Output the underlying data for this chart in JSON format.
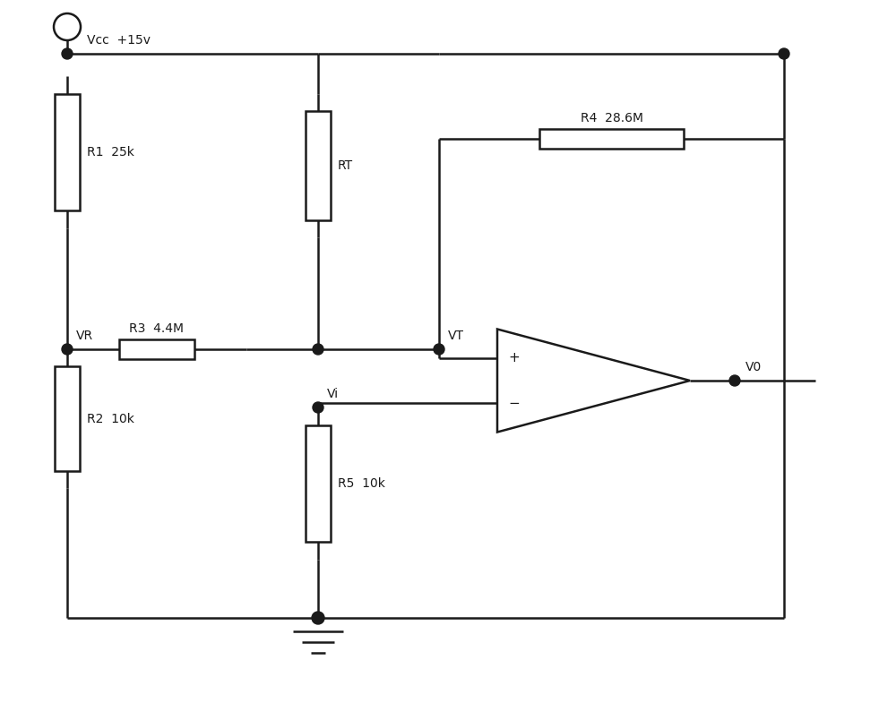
{
  "bg_color": "#ffffff",
  "line_color": "#1a1a1a",
  "line_width": 1.8,
  "figsize": [
    10.0,
    7.85
  ],
  "dpi": 100,
  "labels": {
    "vcc": "Vcc  +15v",
    "r1": "R1  25k",
    "r2": "R2  10k",
    "r3": "R3  4.4M",
    "r4": "R4  28.6M",
    "rt": "RT",
    "r5": "R5  10k",
    "vr": "VR",
    "vt": "VT",
    "vi": "Vi",
    "v0": "V0"
  }
}
